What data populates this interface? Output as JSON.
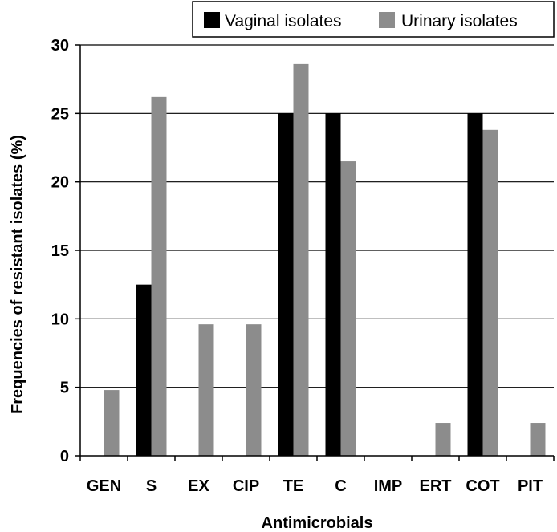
{
  "chart_data": {
    "type": "bar",
    "categories": [
      "GEN",
      "S",
      "EX",
      "CIP",
      "TE",
      "C",
      "IMP",
      "ERT",
      "COT",
      "PIT"
    ],
    "series": [
      {
        "name": "Vaginal isolates",
        "values": [
          0,
          12.5,
          0,
          0,
          25,
          25,
          0,
          0,
          25,
          0
        ],
        "color": "#000000"
      },
      {
        "name": "Urinary isolates",
        "values": [
          4.8,
          26.2,
          9.6,
          9.6,
          28.6,
          21.5,
          0,
          2.4,
          23.8,
          2.4
        ],
        "color": "#8c8c8c"
      }
    ],
    "xlabel": "Antimicrobials",
    "ylabel": "Frequencies of resistant isolates (%)",
    "ylim": [
      0,
      30
    ],
    "yticks": [
      0,
      5,
      10,
      15,
      20,
      25,
      30
    ],
    "grid": true,
    "legend_position": "top-right"
  }
}
